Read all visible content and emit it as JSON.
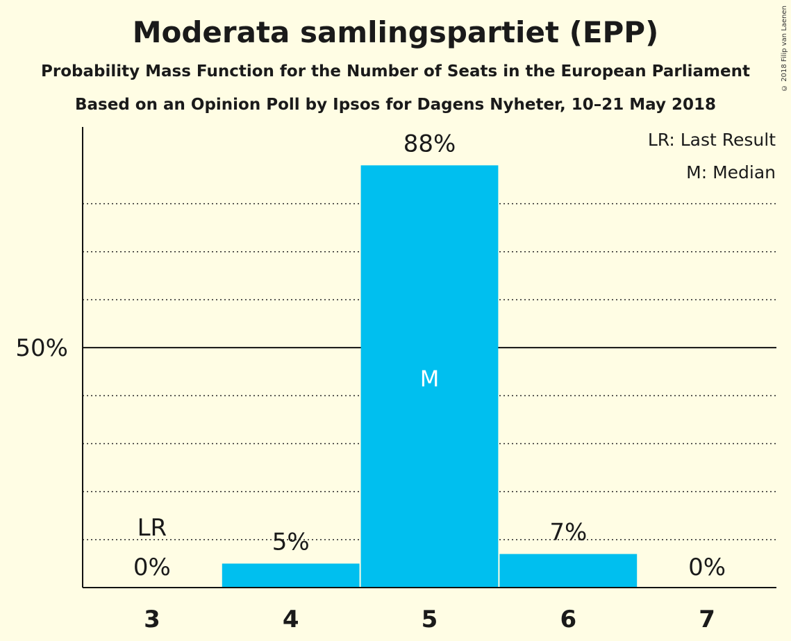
{
  "copyright": "© 2018 Filip van Laenen",
  "chart_data": {
    "type": "bar",
    "title": "Moderata samlingspartiet (EPP)",
    "subtitle": "Probability Mass Function for the Number of Seats in the European Parliament",
    "subtitle2": "Based on an Opinion Poll by Ipsos for Dagens Nyheter, 10–21 May 2018",
    "categories": [
      "3",
      "4",
      "5",
      "6",
      "7"
    ],
    "values": [
      0,
      5,
      88,
      7,
      0
    ],
    "value_labels": [
      "0%",
      "5%",
      "88%",
      "7%",
      "0%"
    ],
    "ylim": [
      0,
      96
    ],
    "yticks": [
      {
        "value": 50,
        "label": "50%"
      }
    ],
    "gridlines": [
      10,
      20,
      30,
      40,
      60,
      70,
      80
    ],
    "last_result": {
      "category": "3",
      "label": "LR"
    },
    "median": {
      "category": "5",
      "label": "M"
    },
    "legend": [
      "LR: Last Result",
      "M: Median"
    ],
    "legend_position": "top-right",
    "bar_color": "#00BFEF"
  }
}
